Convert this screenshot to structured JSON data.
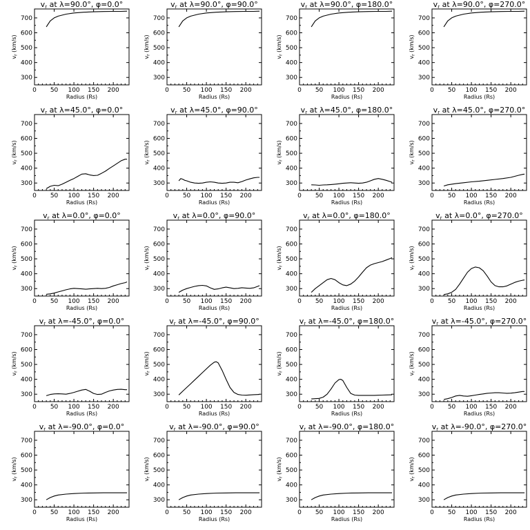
{
  "chart_data": {
    "type": "line",
    "layout": "5x4 small multiples",
    "xlabel": "Radius (Rs)",
    "ylabel": "v_r (km/s)",
    "xlim": [
      0,
      240
    ],
    "ylim": [
      250,
      760
    ],
    "xticks": [
      0,
      50,
      100,
      150,
      200
    ],
    "yticks": [
      300,
      400,
      500,
      600,
      700
    ],
    "panels": [
      {
        "lat": "90.0",
        "lon": "0.0",
        "x": [
          30,
          40,
          50,
          60,
          80,
          100,
          125,
          150,
          175,
          200,
          220,
          235
        ],
        "y": [
          640,
          680,
          700,
          712,
          725,
          733,
          738,
          741,
          743,
          744,
          744,
          745
        ]
      },
      {
        "lat": "90.0",
        "lon": "90.0",
        "x": [
          30,
          40,
          50,
          60,
          80,
          100,
          125,
          150,
          175,
          200,
          220,
          235
        ],
        "y": [
          640,
          680,
          700,
          712,
          725,
          733,
          738,
          741,
          743,
          744,
          744,
          745
        ]
      },
      {
        "lat": "90.0",
        "lon": "180.0",
        "x": [
          30,
          40,
          50,
          60,
          80,
          100,
          125,
          150,
          175,
          200,
          220,
          235
        ],
        "y": [
          640,
          680,
          700,
          712,
          725,
          733,
          738,
          741,
          743,
          744,
          744,
          745
        ]
      },
      {
        "lat": "90.0",
        "lon": "270.0",
        "x": [
          30,
          40,
          50,
          60,
          80,
          100,
          125,
          150,
          175,
          200,
          220,
          235
        ],
        "y": [
          640,
          680,
          700,
          712,
          725,
          733,
          738,
          741,
          743,
          744,
          744,
          745
        ]
      },
      {
        "lat": "45.0",
        "lon": "0.0",
        "x": [
          30,
          40,
          50,
          60,
          70,
          80,
          90,
          100,
          110,
          120,
          130,
          140,
          150,
          160,
          170,
          180,
          190,
          200,
          210,
          220,
          230,
          235
        ],
        "y": [
          262,
          278,
          285,
          282,
          292,
          305,
          318,
          330,
          345,
          360,
          362,
          355,
          350,
          352,
          365,
          380,
          398,
          415,
          432,
          450,
          460,
          460
        ]
      },
      {
        "lat": "45.0",
        "lon": "90.0",
        "x": [
          30,
          35,
          40,
          45,
          50,
          60,
          70,
          80,
          90,
          100,
          110,
          120,
          130,
          140,
          150,
          160,
          170,
          180,
          190,
          200,
          210,
          220,
          230,
          235
        ],
        "y": [
          315,
          330,
          325,
          318,
          315,
          305,
          300,
          298,
          300,
          305,
          308,
          305,
          300,
          298,
          300,
          305,
          305,
          302,
          310,
          320,
          328,
          335,
          338,
          338
        ]
      },
      {
        "lat": "45.0",
        "lon": "180.0",
        "x": [
          30,
          40,
          50,
          60,
          70,
          80,
          90,
          100,
          110,
          120,
          130,
          140,
          150,
          160,
          170,
          180,
          190,
          200,
          210,
          220,
          230,
          235
        ],
        "y": [
          288,
          287,
          285,
          287,
          288,
          290,
          292,
          295,
          298,
          300,
          302,
          300,
          298,
          300,
          305,
          315,
          325,
          330,
          325,
          318,
          310,
          305
        ]
      },
      {
        "lat": "45.0",
        "lon": "270.0",
        "x": [
          30,
          40,
          50,
          60,
          80,
          100,
          120,
          140,
          160,
          180,
          200,
          210,
          220,
          230,
          235
        ],
        "y": [
          280,
          288,
          292,
          296,
          302,
          308,
          312,
          318,
          324,
          330,
          338,
          345,
          352,
          358,
          360
        ]
      },
      {
        "lat": "0.0",
        "lon": "0.0",
        "x": [
          30,
          40,
          50,
          60,
          70,
          80,
          90,
          100,
          110,
          120,
          130,
          140,
          150,
          160,
          170,
          180,
          190,
          200,
          210,
          220,
          230,
          235
        ],
        "y": [
          262,
          265,
          270,
          278,
          285,
          292,
          298,
          302,
          300,
          298,
          296,
          298,
          300,
          302,
          300,
          302,
          308,
          318,
          326,
          334,
          340,
          345
        ]
      },
      {
        "lat": "0.0",
        "lon": "90.0",
        "x": [
          30,
          40,
          50,
          60,
          70,
          80,
          90,
          100,
          110,
          120,
          130,
          140,
          150,
          160,
          170,
          180,
          190,
          200,
          210,
          220,
          230,
          235
        ],
        "y": [
          275,
          290,
          300,
          308,
          315,
          320,
          322,
          318,
          305,
          295,
          298,
          305,
          310,
          305,
          300,
          302,
          306,
          304,
          302,
          305,
          315,
          320
        ]
      },
      {
        "lat": "0.0",
        "lon": "180.0",
        "x": [
          30,
          40,
          50,
          60,
          70,
          80,
          90,
          100,
          110,
          120,
          130,
          140,
          150,
          160,
          170,
          180,
          190,
          200,
          210,
          220,
          230,
          235
        ],
        "y": [
          275,
          300,
          320,
          340,
          360,
          368,
          360,
          340,
          325,
          320,
          330,
          350,
          378,
          410,
          440,
          458,
          468,
          475,
          482,
          492,
          502,
          508
        ]
      },
      {
        "lat": "0.0",
        "lon": "270.0",
        "x": [
          30,
          40,
          50,
          60,
          70,
          80,
          90,
          100,
          110,
          120,
          130,
          140,
          150,
          160,
          170,
          180,
          190,
          200,
          210,
          220,
          230,
          235
        ],
        "y": [
          260,
          265,
          275,
          295,
          330,
          370,
          410,
          435,
          445,
          440,
          420,
          385,
          345,
          320,
          312,
          312,
          318,
          330,
          342,
          350,
          356,
          358
        ]
      },
      {
        "lat": "-45.0",
        "lon": "0.0",
        "x": [
          30,
          40,
          50,
          60,
          70,
          80,
          90,
          100,
          110,
          120,
          130,
          140,
          150,
          160,
          170,
          180,
          190,
          200,
          210,
          220,
          230,
          235
        ],
        "y": [
          290,
          298,
          302,
          303,
          302,
          300,
          305,
          312,
          320,
          328,
          332,
          320,
          305,
          298,
          300,
          312,
          322,
          328,
          332,
          333,
          330,
          330
        ]
      },
      {
        "lat": "-45.0",
        "lon": "90.0",
        "x": [
          30,
          40,
          50,
          60,
          70,
          80,
          90,
          100,
          110,
          120,
          125,
          130,
          140,
          150,
          160,
          170,
          180,
          190,
          200,
          210,
          220,
          235
        ],
        "y": [
          295,
          320,
          345,
          370,
          395,
          420,
          445,
          470,
          495,
          515,
          518,
          510,
          460,
          400,
          345,
          312,
          298,
          294,
          293,
          295,
          297,
          298
        ]
      },
      {
        "lat": "-45.0",
        "lon": "180.0",
        "x": [
          30,
          40,
          50,
          60,
          70,
          80,
          90,
          100,
          105,
          110,
          120,
          130,
          140,
          150,
          160,
          170,
          180,
          190,
          200,
          210,
          220,
          235
        ],
        "y": [
          268,
          270,
          272,
          280,
          300,
          335,
          375,
          398,
          400,
          392,
          345,
          305,
          294,
          292,
          292,
          292,
          292,
          292,
          293,
          294,
          295,
          296
        ]
      },
      {
        "lat": "-45.0",
        "lon": "270.0",
        "x": [
          30,
          40,
          50,
          60,
          70,
          80,
          90,
          100,
          110,
          120,
          130,
          140,
          150,
          160,
          170,
          180,
          190,
          200,
          210,
          220,
          230,
          235
        ],
        "y": [
          265,
          270,
          278,
          288,
          292,
          288,
          286,
          290,
          294,
          298,
          302,
          306,
          308,
          310,
          310,
          308,
          306,
          307,
          310,
          314,
          318,
          318
        ]
      },
      {
        "lat": "-90.0",
        "lon": "0.0",
        "x": [
          30,
          40,
          50,
          60,
          80,
          100,
          125,
          150,
          175,
          200,
          220,
          235
        ],
        "y": [
          300,
          315,
          325,
          332,
          338,
          342,
          345,
          346,
          347,
          347,
          347,
          347
        ]
      },
      {
        "lat": "-90.0",
        "lon": "90.0",
        "x": [
          30,
          40,
          50,
          60,
          80,
          100,
          125,
          150,
          175,
          200,
          220,
          235
        ],
        "y": [
          300,
          315,
          325,
          332,
          338,
          342,
          345,
          346,
          347,
          347,
          347,
          347
        ]
      },
      {
        "lat": "-90.0",
        "lon": "180.0",
        "x": [
          30,
          40,
          50,
          60,
          80,
          100,
          125,
          150,
          175,
          200,
          220,
          235
        ],
        "y": [
          300,
          315,
          325,
          332,
          338,
          342,
          345,
          346,
          347,
          347,
          347,
          347
        ]
      },
      {
        "lat": "-90.0",
        "lon": "270.0",
        "x": [
          30,
          40,
          50,
          60,
          80,
          100,
          125,
          150,
          175,
          200,
          220,
          235
        ],
        "y": [
          300,
          315,
          325,
          332,
          338,
          342,
          345,
          346,
          347,
          347,
          347,
          347
        ]
      }
    ]
  }
}
